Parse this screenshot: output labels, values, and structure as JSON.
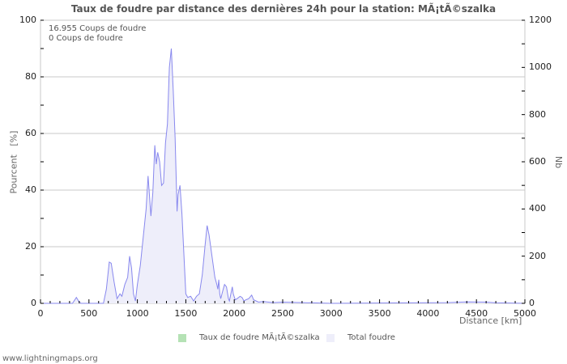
{
  "chart_data": {
    "type": "area",
    "title": "Taux de foudre par distance des dernières 24h pour la station: MÃ¡tÃ©szalka",
    "xlabel": "Distance   [km]",
    "ylabel_left": "Pourcent   [%]",
    "ylabel_right": "Nb",
    "xlim": [
      0,
      5000
    ],
    "ylim_left": [
      0,
      100
    ],
    "ylim_right": [
      0,
      1200
    ],
    "x_ticks": [
      0,
      500,
      1000,
      1500,
      2000,
      2500,
      3000,
      3500,
      4000,
      4500,
      5000
    ],
    "y_left_ticks": [
      0,
      20,
      40,
      60,
      80,
      100
    ],
    "y_right_ticks": [
      0,
      200,
      400,
      600,
      800,
      1000,
      1200
    ],
    "grid": true,
    "legend_position": "bottom",
    "annotations": [
      "16.955  Coups de foudre",
      "0  Coups de foudre"
    ],
    "series": [
      {
        "name": "Taux de foudre MÃ¡tÃ©szalka",
        "color": "#b5e2b5",
        "values": []
      },
      {
        "name": "Total foudre",
        "color": "#eeeefa",
        "line_color": "#8888ee",
        "points": [
          [
            0,
            0
          ],
          [
            330,
            0
          ],
          [
            370,
            25
          ],
          [
            400,
            5
          ],
          [
            420,
            0
          ],
          [
            650,
            0
          ],
          [
            680,
            60
          ],
          [
            710,
            175
          ],
          [
            730,
            170
          ],
          [
            760,
            90
          ],
          [
            790,
            20
          ],
          [
            820,
            40
          ],
          [
            840,
            30
          ],
          [
            870,
            80
          ],
          [
            900,
            110
          ],
          [
            920,
            200
          ],
          [
            940,
            150
          ],
          [
            960,
            40
          ],
          [
            980,
            10
          ],
          [
            1000,
            80
          ],
          [
            1030,
            160
          ],
          [
            1060,
            280
          ],
          [
            1090,
            400
          ],
          [
            1110,
            540
          ],
          [
            1140,
            370
          ],
          [
            1160,
            470
          ],
          [
            1180,
            670
          ],
          [
            1195,
            590
          ],
          [
            1210,
            640
          ],
          [
            1230,
            600
          ],
          [
            1250,
            500
          ],
          [
            1270,
            510
          ],
          [
            1290,
            680
          ],
          [
            1310,
            760
          ],
          [
            1330,
            1000
          ],
          [
            1350,
            1080
          ],
          [
            1370,
            900
          ],
          [
            1390,
            700
          ],
          [
            1410,
            390
          ],
          [
            1420,
            460
          ],
          [
            1440,
            500
          ],
          [
            1460,
            380
          ],
          [
            1480,
            210
          ],
          [
            1500,
            40
          ],
          [
            1520,
            25
          ],
          [
            1550,
            30
          ],
          [
            1580,
            10
          ],
          [
            1610,
            30
          ],
          [
            1640,
            40
          ],
          [
            1670,
            120
          ],
          [
            1700,
            250
          ],
          [
            1720,
            330
          ],
          [
            1740,
            290
          ],
          [
            1760,
            230
          ],
          [
            1780,
            170
          ],
          [
            1800,
            110
          ],
          [
            1820,
            80
          ],
          [
            1830,
            60
          ],
          [
            1840,
            100
          ],
          [
            1850,
            40
          ],
          [
            1860,
            20
          ],
          [
            1880,
            50
          ],
          [
            1900,
            80
          ],
          [
            1920,
            70
          ],
          [
            1940,
            20
          ],
          [
            1950,
            10
          ],
          [
            1980,
            70
          ],
          [
            1990,
            40
          ],
          [
            2010,
            15
          ],
          [
            2030,
            20
          ],
          [
            2060,
            30
          ],
          [
            2080,
            25
          ],
          [
            2100,
            10
          ],
          [
            2120,
            15
          ],
          [
            2150,
            20
          ],
          [
            2180,
            35
          ],
          [
            2200,
            15
          ],
          [
            2250,
            5
          ],
          [
            2300,
            8
          ],
          [
            2400,
            3
          ],
          [
            2500,
            5
          ],
          [
            2700,
            3
          ],
          [
            3000,
            0
          ],
          [
            4200,
            3
          ],
          [
            4400,
            6
          ],
          [
            4600,
            5
          ],
          [
            4700,
            2
          ],
          [
            5000,
            0
          ]
        ]
      }
    ]
  },
  "legend": {
    "item1": "Taux de foudre MÃ¡tÃ©szalka",
    "item2": "Total foudre"
  },
  "footer": "www.lightningmaps.org"
}
